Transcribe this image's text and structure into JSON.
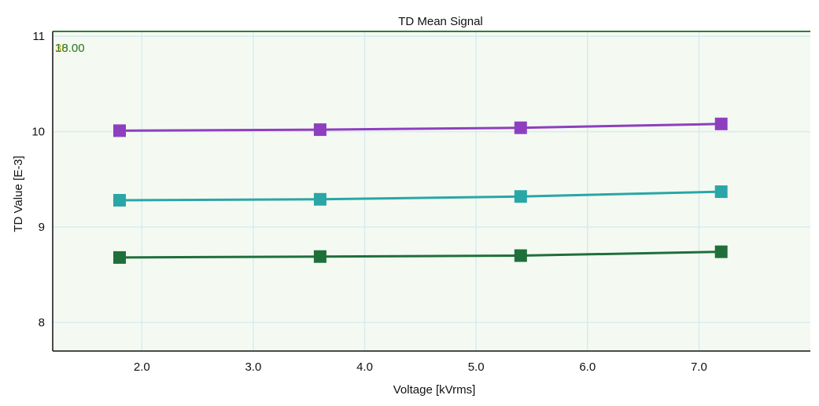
{
  "chart_data": {
    "type": "line",
    "title": "TD Mean Signal",
    "xlabel": "Voltage [kVrms]",
    "ylabel": "TD Value [E-3]",
    "xlim": [
      1.2,
      8.0
    ],
    "ylim": [
      7.7,
      11.05
    ],
    "x_ticks": [
      "2.0",
      "3.0",
      "4.0",
      "5.0",
      "6.0",
      "7.0"
    ],
    "y_ticks": [
      "8",
      "9",
      "10",
      "11"
    ],
    "x": [
      1.8,
      3.6,
      5.4,
      7.2
    ],
    "series": [
      {
        "color": "#8e3fbf",
        "values": [
          10.01,
          10.02,
          10.04,
          10.08
        ]
      },
      {
        "color": "#2aa6a6",
        "values": [
          9.28,
          9.29,
          9.32,
          9.37
        ]
      },
      {
        "color": "#1f6f3a",
        "values": [
          8.68,
          8.69,
          8.7,
          8.74
        ]
      }
    ],
    "corner_label_back": "30.00",
    "corner_label_front": "18.00",
    "corner_color_back": "#c8a800",
    "corner_color_front": "#2f7d3a",
    "grid": true,
    "frame_color": "#2f7d3a",
    "grid_color": "#d9ebee",
    "background_color": "#f4faf2"
  }
}
